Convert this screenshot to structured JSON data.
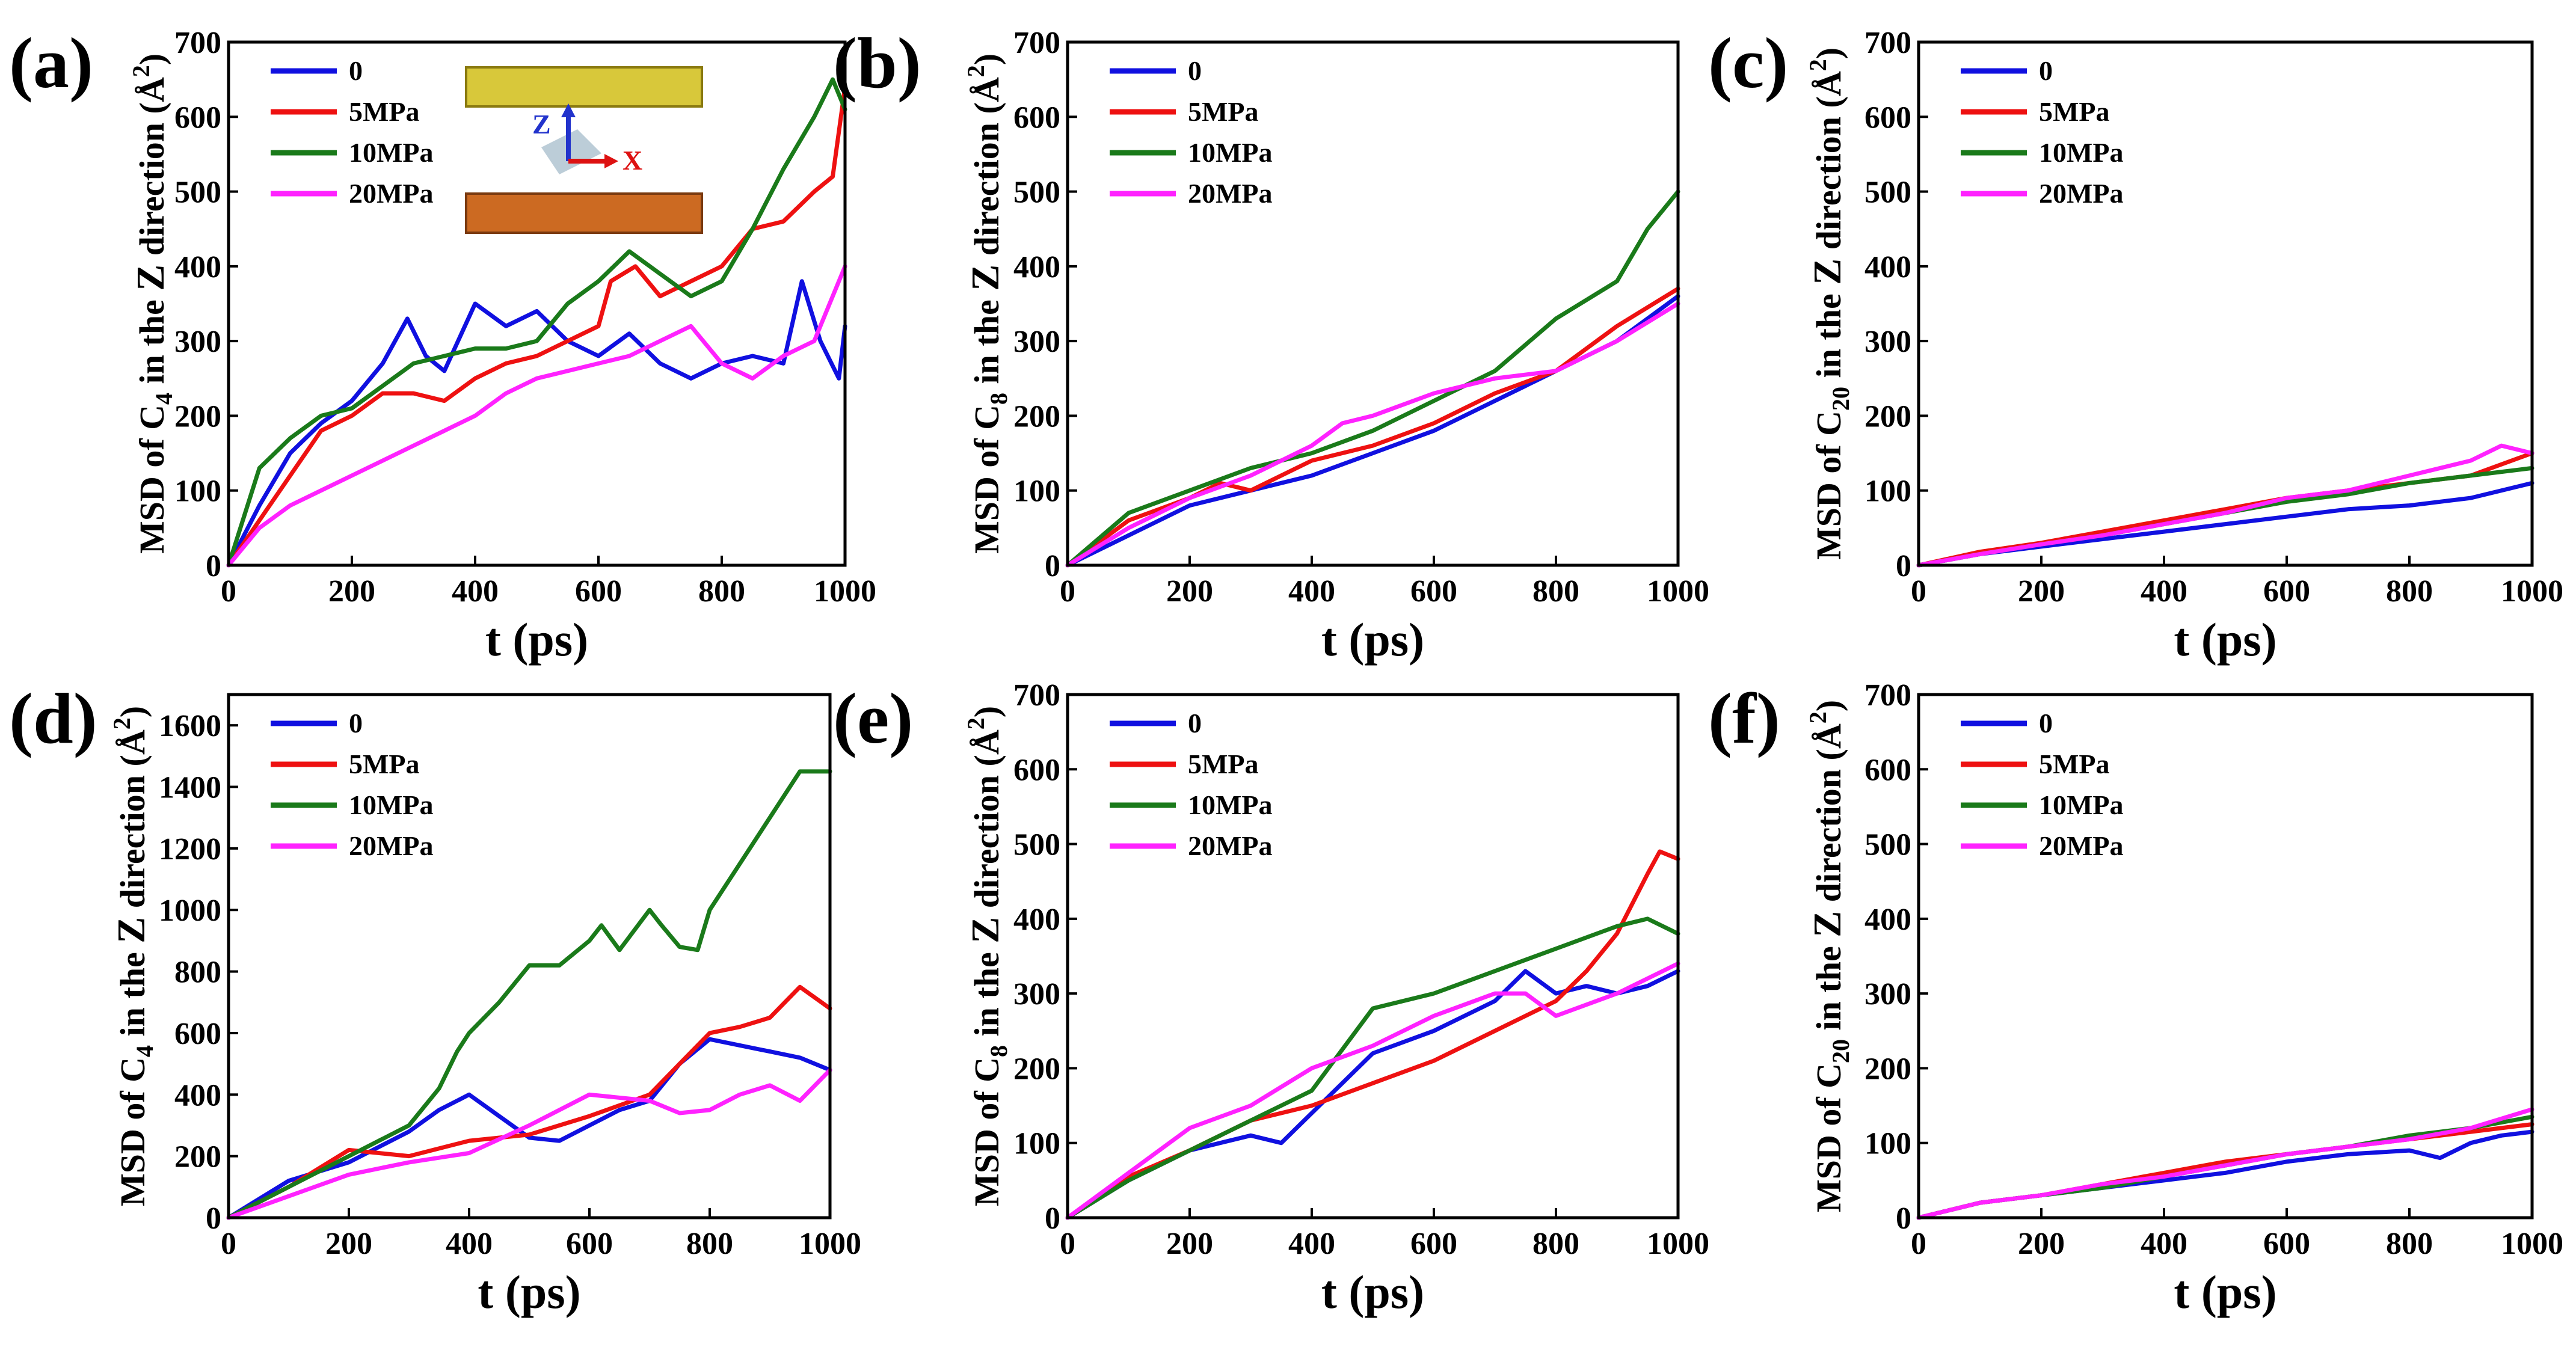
{
  "figure": {
    "colors": {
      "0": "#1010e0",
      "5MPa": "#ee1111",
      "10MPa": "#1a7a1a",
      "20MPa": "#ff22ff"
    },
    "inset": {
      "axis_z": "Z",
      "axis_x": "X",
      "z_color": "#2233cc",
      "x_color": "#dd1111"
    }
  },
  "chart_data": [
    {
      "panel": "(a)",
      "type": "line",
      "title": "",
      "xlabel": "t (ps)",
      "ylabel": "MSD of C4 in the Z direction (Å²)",
      "ylabel_parts": [
        "MSD of C",
        "4",
        " in the ",
        "Z",
        " direction (",
        "Å",
        "2",
        ")"
      ],
      "xlim": [
        0,
        1000
      ],
      "ylim": [
        0,
        700
      ],
      "xticks": [
        0,
        200,
        400,
        600,
        800,
        1000
      ],
      "yticks": [
        0,
        100,
        200,
        300,
        400,
        500,
        600,
        700
      ],
      "legend": "top-left",
      "series": [
        {
          "name": "0",
          "x": [
            0,
            50,
            100,
            150,
            200,
            250,
            290,
            320,
            350,
            400,
            450,
            500,
            550,
            600,
            650,
            700,
            750,
            800,
            850,
            900,
            930,
            960,
            990,
            1000
          ],
          "y": [
            0,
            80,
            150,
            190,
            220,
            270,
            330,
            280,
            260,
            350,
            320,
            340,
            300,
            280,
            310,
            270,
            250,
            270,
            280,
            270,
            380,
            300,
            250,
            320
          ]
        },
        {
          "name": "5MPa",
          "x": [
            0,
            50,
            100,
            150,
            200,
            250,
            300,
            350,
            400,
            450,
            500,
            550,
            600,
            620,
            660,
            700,
            750,
            800,
            850,
            900,
            950,
            980,
            1000
          ],
          "y": [
            0,
            60,
            120,
            180,
            200,
            230,
            230,
            220,
            250,
            270,
            280,
            300,
            320,
            380,
            400,
            360,
            380,
            400,
            450,
            460,
            500,
            520,
            640
          ]
        },
        {
          "name": "10MPa",
          "x": [
            0,
            50,
            100,
            150,
            200,
            250,
            300,
            350,
            400,
            450,
            500,
            550,
            600,
            650,
            700,
            750,
            800,
            850,
            900,
            950,
            980,
            1000
          ],
          "y": [
            0,
            130,
            170,
            200,
            210,
            240,
            270,
            280,
            290,
            290,
            300,
            350,
            380,
            420,
            390,
            360,
            380,
            450,
            530,
            600,
            650,
            610
          ]
        },
        {
          "name": "20MPa",
          "x": [
            0,
            50,
            100,
            150,
            200,
            250,
            300,
            350,
            400,
            450,
            500,
            550,
            600,
            650,
            700,
            750,
            800,
            850,
            900,
            950,
            1000
          ],
          "y": [
            0,
            50,
            80,
            100,
            120,
            140,
            160,
            180,
            200,
            230,
            250,
            260,
            270,
            280,
            300,
            320,
            270,
            250,
            280,
            300,
            400
          ]
        }
      ]
    },
    {
      "panel": "(b)",
      "type": "line",
      "title": "",
      "xlabel": "t (ps)",
      "ylabel": "MSD of C8 in the Z direction (Å²)",
      "ylabel_parts": [
        "MSD of C",
        "8",
        " in the ",
        "Z",
        " direction (",
        "Å",
        "2",
        ")"
      ],
      "xlim": [
        0,
        1000
      ],
      "ylim": [
        0,
        700
      ],
      "xticks": [
        0,
        200,
        400,
        600,
        800,
        1000
      ],
      "yticks": [
        0,
        100,
        200,
        300,
        400,
        500,
        600,
        700
      ],
      "legend": "top-left",
      "series": [
        {
          "name": "0",
          "x": [
            0,
            100,
            200,
            300,
            400,
            500,
            600,
            700,
            800,
            900,
            1000
          ],
          "y": [
            0,
            40,
            80,
            100,
            120,
            150,
            180,
            220,
            260,
            300,
            360
          ]
        },
        {
          "name": "5MPa",
          "x": [
            0,
            100,
            200,
            250,
            300,
            400,
            500,
            600,
            700,
            800,
            900,
            1000
          ],
          "y": [
            0,
            60,
            90,
            110,
            100,
            140,
            160,
            190,
            230,
            260,
            320,
            370
          ]
        },
        {
          "name": "10MPa",
          "x": [
            0,
            100,
            200,
            300,
            400,
            500,
            600,
            700,
            800,
            900,
            950,
            1000
          ],
          "y": [
            0,
            70,
            100,
            130,
            150,
            180,
            220,
            260,
            330,
            380,
            450,
            500
          ]
        },
        {
          "name": "20MPa",
          "x": [
            0,
            100,
            200,
            300,
            400,
            450,
            500,
            600,
            700,
            800,
            900,
            1000
          ],
          "y": [
            0,
            50,
            90,
            120,
            160,
            190,
            200,
            230,
            250,
            260,
            300,
            350
          ]
        }
      ]
    },
    {
      "panel": "(c)",
      "type": "line",
      "title": "",
      "xlabel": "t (ps)",
      "ylabel": "MSD of C20 in the Z direction (Å²)",
      "ylabel_parts": [
        "MSD of C",
        "20",
        " in the ",
        "Z",
        " direction (",
        "Å",
        "2",
        ")"
      ],
      "xlim": [
        0,
        1000
      ],
      "ylim": [
        0,
        700
      ],
      "xticks": [
        0,
        200,
        400,
        600,
        800,
        1000
      ],
      "yticks": [
        0,
        100,
        200,
        300,
        400,
        500,
        600,
        700
      ],
      "legend": "top-left",
      "series": [
        {
          "name": "0",
          "x": [
            0,
            100,
            200,
            300,
            400,
            500,
            600,
            700,
            800,
            900,
            1000
          ],
          "y": [
            0,
            15,
            25,
            35,
            45,
            55,
            65,
            75,
            80,
            90,
            110
          ]
        },
        {
          "name": "5MPa",
          "x": [
            0,
            100,
            200,
            300,
            400,
            500,
            600,
            700,
            800,
            900,
            1000
          ],
          "y": [
            0,
            18,
            30,
            45,
            60,
            75,
            90,
            100,
            110,
            120,
            150
          ]
        },
        {
          "name": "10MPa",
          "x": [
            0,
            100,
            200,
            300,
            400,
            500,
            600,
            700,
            800,
            900,
            1000
          ],
          "y": [
            0,
            15,
            28,
            40,
            55,
            70,
            85,
            95,
            110,
            120,
            130
          ]
        },
        {
          "name": "20MPa",
          "x": [
            0,
            100,
            200,
            300,
            400,
            500,
            600,
            700,
            800,
            900,
            950,
            1000
          ],
          "y": [
            0,
            15,
            28,
            40,
            55,
            70,
            90,
            100,
            120,
            140,
            160,
            150
          ]
        }
      ]
    },
    {
      "panel": "(d)",
      "type": "line",
      "title": "",
      "xlabel": "t (ps)",
      "ylabel": "MSD of C4 in the Z direction (Å²)",
      "ylabel_parts": [
        "MSD of C",
        "4",
        " in the ",
        "Z",
        " direction (",
        "Å",
        "2",
        ")"
      ],
      "xlim": [
        0,
        1000
      ],
      "ylim": [
        0,
        1700
      ],
      "xticks": [
        0,
        200,
        400,
        600,
        800,
        1000
      ],
      "yticks": [
        0,
        200,
        400,
        600,
        800,
        1000,
        1200,
        1400,
        1600
      ],
      "legend": "top-left",
      "series": [
        {
          "name": "0",
          "x": [
            0,
            100,
            200,
            300,
            350,
            400,
            450,
            500,
            550,
            600,
            650,
            700,
            750,
            800,
            850,
            900,
            950,
            1000
          ],
          "y": [
            0,
            120,
            180,
            280,
            350,
            400,
            330,
            260,
            250,
            300,
            350,
            380,
            500,
            580,
            560,
            540,
            520,
            480
          ]
        },
        {
          "name": "5MPa",
          "x": [
            0,
            100,
            200,
            300,
            400,
            500,
            600,
            700,
            750,
            800,
            850,
            900,
            950,
            1000
          ],
          "y": [
            0,
            100,
            220,
            200,
            250,
            270,
            330,
            400,
            500,
            600,
            620,
            650,
            750,
            680
          ]
        },
        {
          "name": "10MPa",
          "x": [
            0,
            100,
            200,
            300,
            350,
            380,
            400,
            450,
            500,
            550,
            600,
            620,
            650,
            700,
            720,
            750,
            780,
            800,
            850,
            900,
            950,
            1000
          ],
          "y": [
            0,
            100,
            200,
            300,
            420,
            540,
            600,
            700,
            820,
            820,
            900,
            950,
            870,
            1000,
            950,
            880,
            870,
            1000,
            1150,
            1300,
            1450,
            1450
          ]
        },
        {
          "name": "20MPa",
          "x": [
            0,
            100,
            200,
            300,
            400,
            500,
            600,
            700,
            750,
            800,
            850,
            900,
            950,
            1000
          ],
          "y": [
            0,
            70,
            140,
            180,
            210,
            300,
            400,
            380,
            340,
            350,
            400,
            430,
            380,
            480
          ]
        }
      ]
    },
    {
      "panel": "(e)",
      "type": "line",
      "title": "",
      "xlabel": "t (ps)",
      "ylabel": "MSD of C8 in the Z direction (Å²)",
      "ylabel_parts": [
        "MSD of C",
        "8",
        " in the ",
        "Z",
        " direction (",
        "Å",
        "2",
        ")"
      ],
      "xlim": [
        0,
        1000
      ],
      "ylim": [
        0,
        700
      ],
      "xticks": [
        0,
        200,
        400,
        600,
        800,
        1000
      ],
      "yticks": [
        0,
        100,
        200,
        300,
        400,
        500,
        600,
        700
      ],
      "legend": "top-left",
      "series": [
        {
          "name": "0",
          "x": [
            0,
            100,
            200,
            300,
            350,
            400,
            500,
            600,
            700,
            750,
            800,
            850,
            900,
            950,
            1000
          ],
          "y": [
            0,
            50,
            90,
            110,
            100,
            140,
            220,
            250,
            290,
            330,
            300,
            310,
            300,
            310,
            330
          ]
        },
        {
          "name": "5MPa",
          "x": [
            0,
            100,
            200,
            300,
            400,
            500,
            600,
            700,
            800,
            850,
            900,
            950,
            970,
            1000
          ],
          "y": [
            0,
            55,
            90,
            130,
            150,
            180,
            210,
            250,
            290,
            330,
            380,
            460,
            490,
            480
          ]
        },
        {
          "name": "10MPa",
          "x": [
            0,
            100,
            200,
            300,
            400,
            500,
            600,
            700,
            800,
            900,
            950,
            1000
          ],
          "y": [
            0,
            50,
            90,
            130,
            170,
            280,
            300,
            330,
            360,
            390,
            400,
            380
          ]
        },
        {
          "name": "20MPa",
          "x": [
            0,
            100,
            200,
            300,
            400,
            500,
            600,
            700,
            750,
            800,
            900,
            1000
          ],
          "y": [
            0,
            60,
            120,
            150,
            200,
            230,
            270,
            300,
            300,
            270,
            300,
            340
          ]
        }
      ]
    },
    {
      "panel": "(f)",
      "type": "line",
      "title": "",
      "xlabel": "t (ps)",
      "ylabel": "MSD of C20 in the Z direction (Å²)",
      "ylabel_parts": [
        "MSD of C",
        "20",
        " in the ",
        "Z",
        " direction (",
        "Å",
        "2",
        ")"
      ],
      "xlim": [
        0,
        1000
      ],
      "ylim": [
        0,
        700
      ],
      "xticks": [
        0,
        200,
        400,
        600,
        800,
        1000
      ],
      "yticks": [
        0,
        100,
        200,
        300,
        400,
        500,
        600,
        700
      ],
      "legend": "top-left",
      "series": [
        {
          "name": "0",
          "x": [
            0,
            100,
            200,
            300,
            400,
            500,
            600,
            700,
            800,
            850,
            900,
            950,
            1000
          ],
          "y": [
            0,
            20,
            30,
            40,
            50,
            60,
            75,
            85,
            90,
            80,
            100,
            110,
            115
          ]
        },
        {
          "name": "5MPa",
          "x": [
            0,
            100,
            200,
            300,
            400,
            500,
            600,
            700,
            800,
            900,
            1000
          ],
          "y": [
            0,
            20,
            30,
            45,
            60,
            75,
            85,
            95,
            105,
            115,
            125
          ]
        },
        {
          "name": "10MPa",
          "x": [
            0,
            100,
            200,
            300,
            400,
            500,
            600,
            700,
            800,
            900,
            1000
          ],
          "y": [
            0,
            20,
            30,
            40,
            55,
            70,
            85,
            95,
            110,
            120,
            135
          ]
        },
        {
          "name": "20MPa",
          "x": [
            0,
            100,
            200,
            300,
            400,
            500,
            600,
            700,
            800,
            900,
            1000
          ],
          "y": [
            0,
            20,
            30,
            45,
            55,
            70,
            85,
            95,
            105,
            120,
            145
          ]
        }
      ]
    }
  ]
}
